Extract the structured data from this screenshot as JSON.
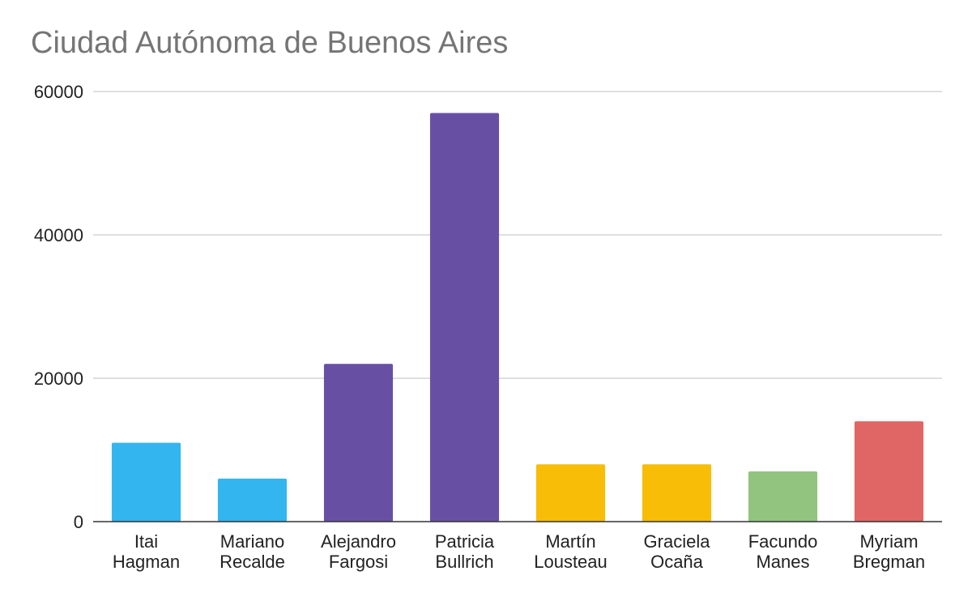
{
  "chart_data": {
    "type": "bar",
    "title": "Ciudad Autónoma de Buenos Aires",
    "xlabel": "",
    "ylabel": "",
    "categories": [
      [
        "Itai",
        "Hagman"
      ],
      [
        "Mariano",
        "Recalde"
      ],
      [
        "Alejandro",
        "Fargosi"
      ],
      [
        "Patricia",
        "Bullrich"
      ],
      [
        "Martín",
        "Lousteau"
      ],
      [
        "Graciela",
        "Ocaña"
      ],
      [
        "Facundo",
        "Manes"
      ],
      [
        "Myriam",
        "Bregman"
      ]
    ],
    "values": [
      11000,
      6000,
      22000,
      57000,
      8000,
      8000,
      7000,
      14000
    ],
    "colors": [
      "#33b5f0",
      "#33b5f0",
      "#6750a4",
      "#6750a4",
      "#f7bd07",
      "#f7bd07",
      "#92c47f",
      "#e06666"
    ],
    "ylim": [
      0,
      60000
    ],
    "yticks": [
      "0",
      "20000",
      "40000",
      "60000"
    ],
    "grid": true,
    "legend": "none"
  }
}
